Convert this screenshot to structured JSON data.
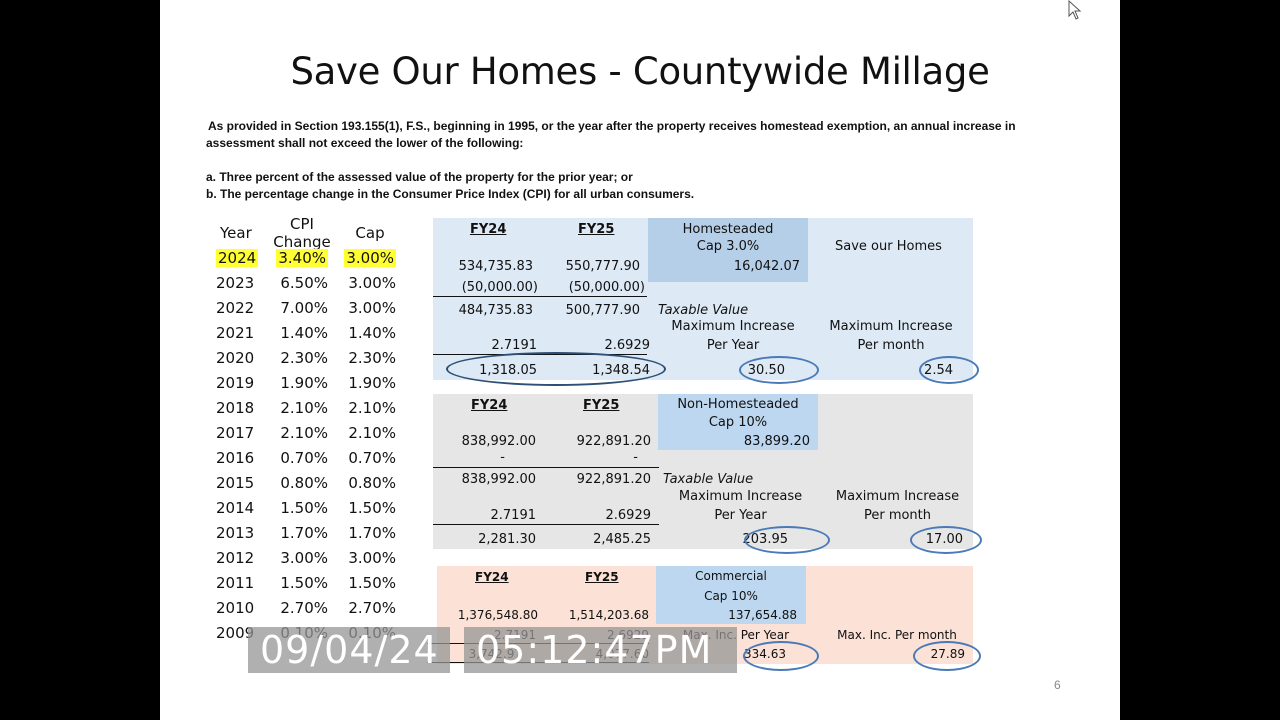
{
  "slide": {
    "title": "Save Our Homes - Countywide Millage",
    "intro": {
      "line1": "As provided in Section 193.155(1), F.S., beginning in 1995, or the year after the property receives homestead exemption, an annual increase in",
      "line2": "assessment shall not exceed the lower of the following:",
      "item_a": "a. Three percent of the assessed value of the property for the prior year; or",
      "item_b": "b. The percentage change in the Consumer Price Index (CPI) for all urban consumers."
    },
    "page_number": "6"
  },
  "cpi_table": {
    "headers": [
      "Year",
      "CPI Change",
      "Cap"
    ],
    "rows": [
      {
        "year": "2024",
        "cpi": "3.40%",
        "cap": "3.00%",
        "highlight": true
      },
      {
        "year": "2023",
        "cpi": "6.50%",
        "cap": "3.00%"
      },
      {
        "year": "2022",
        "cpi": "7.00%",
        "cap": "3.00%"
      },
      {
        "year": "2021",
        "cpi": "1.40%",
        "cap": "1.40%"
      },
      {
        "year": "2020",
        "cpi": "2.30%",
        "cap": "2.30%"
      },
      {
        "year": "2019",
        "cpi": "1.90%",
        "cap": "1.90%"
      },
      {
        "year": "2018",
        "cpi": "2.10%",
        "cap": "2.10%"
      },
      {
        "year": "2017",
        "cpi": "2.10%",
        "cap": "2.10%"
      },
      {
        "year": "2016",
        "cpi": "0.70%",
        "cap": "0.70%"
      },
      {
        "year": "2015",
        "cpi": "0.80%",
        "cap": "0.80%"
      },
      {
        "year": "2014",
        "cpi": "1.50%",
        "cap": "1.50%"
      },
      {
        "year": "2013",
        "cpi": "1.70%",
        "cap": "1.70%"
      },
      {
        "year": "2012",
        "cpi": "3.00%",
        "cap": "3.00%"
      },
      {
        "year": "2011",
        "cpi": "1.50%",
        "cap": "1.50%"
      },
      {
        "year": "2010",
        "cpi": "2.70%",
        "cap": "2.70%"
      },
      {
        "year": "2009",
        "cpi": "0.10%",
        "cap": "0.10%"
      }
    ],
    "highlight_color": "#ffff33"
  },
  "homestead": {
    "fy24_label": "FY24",
    "fy25_label": "FY25",
    "assessed": [
      "534,735.83",
      "550,777.90"
    ],
    "exemption": [
      "(50,000.00)",
      "(50,000.00)"
    ],
    "taxable": [
      "484,735.83",
      "500,777.90"
    ],
    "millage": [
      "2.7191",
      "2.6929"
    ],
    "tax": [
      "1,318.05",
      "1,348.54"
    ],
    "cap_title": "Homesteaded",
    "cap_rate": "Cap 3.0%",
    "cap_value": "16,042.07",
    "section_title": "Save our Homes",
    "taxable_label": "Taxable Value",
    "max_year_label1": "Maximum  Increase",
    "max_year_label2": "Per Year",
    "max_month_label1": "Maximum Increase",
    "max_month_label2": "Per month",
    "max_year": "30.50",
    "max_month": "2.54",
    "bg_color": "#dde9f5"
  },
  "non_homestead": {
    "fy24_label": "FY24",
    "fy25_label": "FY25",
    "assessed": [
      "838,992.00",
      "922,891.20"
    ],
    "exemption": [
      "-",
      "-"
    ],
    "taxable": [
      "838,992.00",
      "922,891.20"
    ],
    "millage": [
      "2.7191",
      "2.6929"
    ],
    "tax": [
      "2,281.30",
      "2,485.25"
    ],
    "cap_title": "Non-Homesteaded",
    "cap_rate": "Cap 10%",
    "cap_value": "83,899.20",
    "taxable_label": "Taxable Value",
    "max_year_label1": "Maximum Increase",
    "max_year_label2": "Per Year",
    "max_month_label1": "Maximum Increase",
    "max_month_label2": "Per month",
    "max_year": "203.95",
    "max_month": "17.00",
    "bg_color": "#e6e6e6"
  },
  "commercial": {
    "fy24_label": "FY24",
    "fy25_label": "FY25",
    "assessed": [
      "1,376,548.80",
      "1,514,203.68"
    ],
    "millage": [
      "2.7191",
      "2.6929"
    ],
    "tax": [
      "3,742.97",
      "4,077.60"
    ],
    "cap_title": "Commercial",
    "cap_rate": "Cap 10%",
    "cap_value": "137,654.88",
    "max_year_label": "Max. Inc. Per Year",
    "max_month_label": "Max. Inc. Per month",
    "max_year": "334.63",
    "max_month": "27.89",
    "bg_color": "#fbe1d6"
  },
  "overlay": {
    "date": "09/04/24",
    "time": "05:12:47PM"
  }
}
